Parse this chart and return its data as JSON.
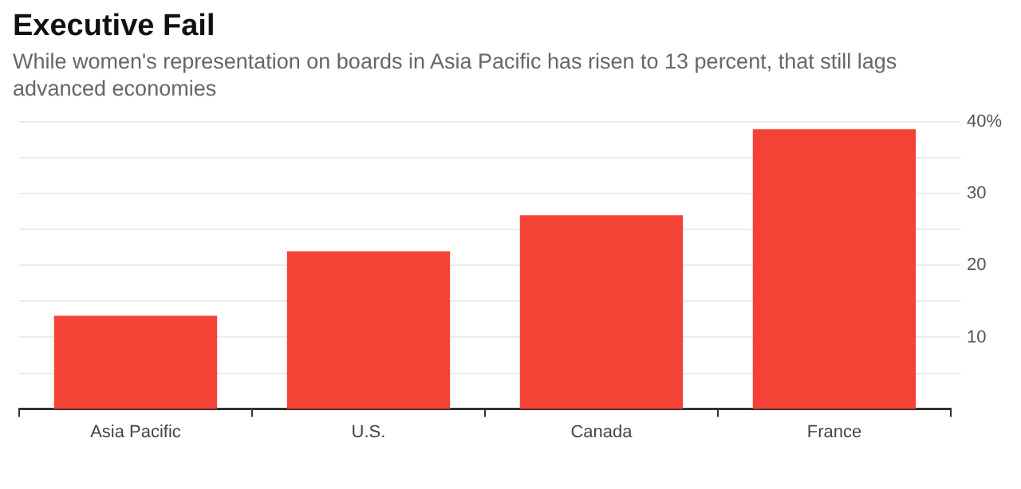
{
  "chart_data": {
    "type": "bar",
    "title": "Executive Fail",
    "subtitle": "While women's representation on boards in Asia Pacific has risen to 13 percent, that still lags advanced economies",
    "categories": [
      "Asia Pacific",
      "U.S.",
      "Canada",
      "France"
    ],
    "values": [
      13,
      22,
      27,
      39
    ],
    "color": "#f44336",
    "ylim": [
      0,
      40
    ],
    "yticks": [
      {
        "value": 5,
        "label": null
      },
      10,
      {
        "value": 15,
        "label": null
      },
      20,
      {
        "value": 25,
        "label": null
      },
      30,
      {
        "value": 35,
        "label": null
      },
      {
        "value": 40,
        "label": "40%"
      }
    ],
    "grid": "y"
  }
}
